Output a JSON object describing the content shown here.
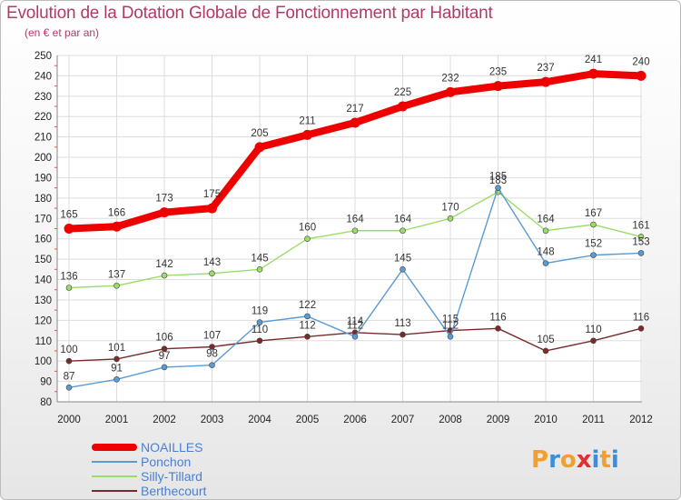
{
  "header": {
    "title": "Evolution de la Dotation Globale de Fonctionnement par Habitant",
    "subtitle": "(en € et par an)"
  },
  "logo": {
    "text": "Proxiti",
    "colors": [
      "#f0a030",
      "#3a8fd8",
      "#f0a030",
      "#e03030",
      "#3a8fd8",
      "#f0a030",
      "#3a8fd8"
    ]
  },
  "chart_data": {
    "type": "line",
    "title": "Evolution de la Dotation Globale de Fonctionnement par Habitant",
    "subtitle": "(en € et par an)",
    "x": [
      "2000",
      "2001",
      "2002",
      "2003",
      "2004",
      "2005",
      "2006",
      "2007",
      "2008",
      "2009",
      "2010",
      "2011",
      "2012"
    ],
    "ylim": [
      80,
      250
    ],
    "yticks": [
      80,
      90,
      100,
      110,
      120,
      130,
      140,
      150,
      160,
      170,
      180,
      190,
      200,
      210,
      220,
      230,
      240,
      250
    ],
    "grid": true,
    "legend_position": "bottom-left",
    "series": [
      {
        "name": "NOAILLES",
        "color": "#ee0000",
        "values": [
          165,
          166,
          173,
          175,
          205,
          211,
          217,
          225,
          232,
          235,
          237,
          241,
          240
        ]
      },
      {
        "name": "Ponchon",
        "color": "#5a9bd3",
        "values": [
          87,
          91,
          97,
          98,
          119,
          122,
          112,
          145,
          112,
          185,
          148,
          152,
          153
        ]
      },
      {
        "name": "Silly-Tillard",
        "color": "#99dd66",
        "values": [
          136,
          137,
          142,
          143,
          145,
          160,
          164,
          164,
          170,
          183,
          164,
          167,
          161
        ]
      },
      {
        "name": "Berthecourt",
        "color": "#7a2a2a",
        "values": [
          100,
          101,
          106,
          107,
          110,
          112,
          114,
          113,
          115,
          116,
          105,
          110,
          116
        ]
      }
    ]
  }
}
